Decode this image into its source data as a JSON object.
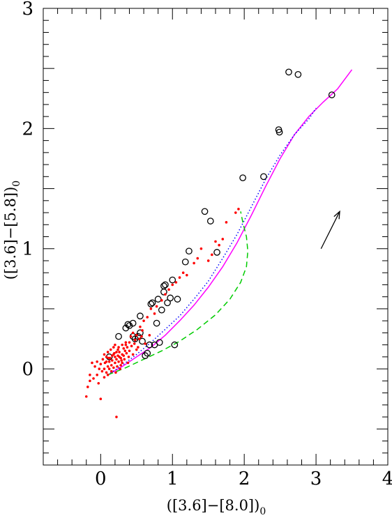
{
  "chart_data": {
    "type": "scatter",
    "xlabel": "([3.6]−[8.0])",
    "xlabel_sub": "0",
    "ylabel": "([3.6]−[5.8])",
    "ylabel_sub": "0",
    "xlim": [
      -0.8,
      4.0
    ],
    "ylim": [
      -0.8,
      3.0
    ],
    "xticks": [
      0,
      1,
      2,
      3,
      4
    ],
    "yticks": [
      0,
      1,
      2,
      3
    ],
    "xtick_labels": [
      "0",
      "1",
      "2",
      "3",
      "4"
    ],
    "ytick_labels": [
      "0",
      "1",
      "2",
      "3"
    ],
    "grid": false,
    "colors": {
      "open_circles": "#000000",
      "red_points": "#ff0000",
      "magenta_line": "#ff00ff",
      "blue_dotted": "#0000ff",
      "green_dashed": "#00cc00",
      "arrow": "#000000"
    },
    "series": [
      {
        "marker": "open-circle",
        "color": "#000000",
        "points": [
          [
            0.12,
            0.1
          ],
          [
            0.25,
            0.27
          ],
          [
            0.35,
            0.34
          ],
          [
            0.38,
            0.37
          ],
          [
            0.4,
            0.36
          ],
          [
            0.45,
            0.38
          ],
          [
            0.45,
            0.27
          ],
          [
            0.48,
            0.25
          ],
          [
            0.52,
            0.27
          ],
          [
            0.55,
            0.3
          ],
          [
            0.55,
            0.44
          ],
          [
            0.58,
            0.23
          ],
          [
            0.62,
            0.11
          ],
          [
            0.65,
            0.13
          ],
          [
            0.68,
            0.2
          ],
          [
            0.7,
            0.54
          ],
          [
            0.72,
            0.55
          ],
          [
            0.75,
            0.2
          ],
          [
            0.78,
            0.38
          ],
          [
            0.8,
            0.58
          ],
          [
            0.82,
            0.22
          ],
          [
            0.85,
            0.49
          ],
          [
            0.88,
            0.64
          ],
          [
            0.88,
            0.69
          ],
          [
            0.9,
            0.7
          ],
          [
            0.93,
            0.55
          ],
          [
            0.97,
            0.59
          ],
          [
            1.0,
            0.74
          ],
          [
            1.03,
            0.2
          ],
          [
            1.07,
            0.58
          ],
          [
            1.18,
            0.89
          ],
          [
            1.23,
            0.98
          ],
          [
            1.45,
            1.31
          ],
          [
            1.53,
            1.23
          ],
          [
            1.62,
            0.97
          ],
          [
            1.98,
            1.59
          ],
          [
            2.27,
            1.6
          ],
          [
            2.48,
            1.99
          ],
          [
            2.49,
            1.97
          ],
          [
            2.62,
            2.47
          ],
          [
            2.75,
            2.45
          ],
          [
            3.22,
            2.28
          ]
        ]
      },
      {
        "marker": "dot",
        "color": "#ff0000",
        "points": [
          [
            -0.2,
            -0.23
          ],
          [
            -0.18,
            -0.15
          ],
          [
            -0.15,
            -0.1
          ],
          [
            -0.12,
            0.05
          ],
          [
            -0.1,
            -0.08
          ],
          [
            -0.08,
            0.02
          ],
          [
            -0.05,
            -0.05
          ],
          [
            -0.05,
            0.06
          ],
          [
            -0.03,
            -0.12
          ],
          [
            -0.02,
            0.0
          ],
          [
            0.0,
            -0.25
          ],
          [
            0.0,
            0.04
          ],
          [
            0.02,
            -0.02
          ],
          [
            0.03,
            0.08
          ],
          [
            0.05,
            0.0
          ],
          [
            0.05,
            -0.07
          ],
          [
            0.06,
            0.05
          ],
          [
            0.08,
            -0.03
          ],
          [
            0.08,
            0.1
          ],
          [
            0.1,
            0.02
          ],
          [
            0.1,
            -0.05
          ],
          [
            0.12,
            0.06
          ],
          [
            0.12,
            0.0
          ],
          [
            0.13,
            0.09
          ],
          [
            0.15,
            0.03
          ],
          [
            0.15,
            -0.02
          ],
          [
            0.16,
            0.07
          ],
          [
            0.18,
            0.12
          ],
          [
            0.18,
            0.01
          ],
          [
            0.2,
            0.05
          ],
          [
            0.2,
            0.1
          ],
          [
            0.21,
            -0.03
          ],
          [
            0.22,
            0.08
          ],
          [
            0.23,
            0.02
          ],
          [
            0.24,
            0.11
          ],
          [
            0.25,
            0.06
          ],
          [
            0.26,
            0.14
          ],
          [
            0.28,
            0.03
          ],
          [
            0.28,
            0.09
          ],
          [
            0.3,
            0.12
          ],
          [
            0.3,
            0.05
          ],
          [
            0.32,
            0.17
          ],
          [
            0.33,
            0.08
          ],
          [
            0.35,
            0.2
          ],
          [
            0.36,
            0.13
          ],
          [
            0.38,
            0.05
          ],
          [
            0.4,
            0.22
          ],
          [
            0.4,
            0.15
          ],
          [
            0.42,
            0.27
          ],
          [
            0.45,
            0.3
          ],
          [
            0.45,
            0.12
          ],
          [
            0.48,
            0.24
          ],
          [
            0.5,
            0.28
          ],
          [
            0.52,
            0.18
          ],
          [
            0.55,
            0.35
          ],
          [
            0.58,
            0.32
          ],
          [
            0.6,
            0.4
          ],
          [
            0.62,
            0.21
          ],
          [
            0.65,
            0.43
          ],
          [
            0.68,
            0.28
          ],
          [
            0.7,
            0.5
          ],
          [
            0.75,
            0.46
          ],
          [
            0.78,
            0.52
          ],
          [
            0.85,
            0.57
          ],
          [
            0.9,
            0.62
          ],
          [
            0.95,
            0.66
          ],
          [
            1.0,
            0.7
          ],
          [
            1.05,
            0.72
          ],
          [
            1.1,
            0.76
          ],
          [
            1.15,
            0.8
          ],
          [
            1.2,
            0.78
          ],
          [
            1.3,
            0.88
          ],
          [
            1.35,
            0.92
          ],
          [
            1.4,
            1.0
          ],
          [
            1.5,
            0.9
          ],
          [
            1.55,
            0.95
          ],
          [
            1.6,
            1.06
          ],
          [
            1.65,
            1.03
          ],
          [
            1.7,
            1.08
          ],
          [
            1.75,
            1.22
          ],
          [
            1.88,
            1.3
          ],
          [
            1.92,
            1.33
          ],
          [
            -0.15,
            -0.05
          ],
          [
            0.22,
            -0.4
          ],
          [
            0.25,
            0.18
          ],
          [
            0.27,
            0.0
          ],
          [
            0.3,
            0.2
          ],
          [
            0.35,
            0.22
          ],
          [
            0.05,
            0.12
          ],
          [
            0.1,
            0.14
          ],
          [
            0.14,
            0.16
          ],
          [
            0.18,
            0.18
          ],
          [
            0.2,
            0.2
          ],
          [
            0.24,
            0.16
          ],
          [
            0.08,
            0.06
          ],
          [
            0.11,
            0.09
          ],
          [
            0.16,
            0.11
          ],
          [
            0.19,
            0.13
          ],
          [
            0.22,
            0.14
          ],
          [
            0.26,
            0.1
          ],
          [
            0.29,
            0.07
          ],
          [
            0.32,
            0.11
          ],
          [
            0.34,
            0.15
          ],
          [
            0.37,
            0.18
          ],
          [
            0.39,
            0.1
          ],
          [
            0.43,
            0.19
          ],
          [
            0.47,
            0.21
          ],
          [
            0.5,
            0.16
          ],
          [
            0.54,
            0.25
          ],
          [
            0.57,
            0.27
          ]
        ]
      },
      {
        "style": "solid",
        "color": "#ff00ff",
        "points": [
          [
            0.1,
            -0.05
          ],
          [
            0.3,
            0.02
          ],
          [
            0.5,
            0.1
          ],
          [
            0.7,
            0.18
          ],
          [
            0.9,
            0.28
          ],
          [
            1.1,
            0.4
          ],
          [
            1.3,
            0.53
          ],
          [
            1.5,
            0.68
          ],
          [
            1.7,
            0.85
          ],
          [
            1.9,
            1.05
          ],
          [
            2.1,
            1.28
          ],
          [
            2.3,
            1.52
          ],
          [
            2.5,
            1.75
          ],
          [
            2.7,
            1.95
          ],
          [
            2.9,
            2.1
          ],
          [
            3.1,
            2.22
          ],
          [
            3.3,
            2.33
          ],
          [
            3.5,
            2.49
          ]
        ]
      },
      {
        "style": "dotted",
        "color": "#0000ff",
        "points": [
          [
            0.1,
            -0.05
          ],
          [
            0.3,
            0.03
          ],
          [
            0.5,
            0.12
          ],
          [
            0.7,
            0.22
          ],
          [
            0.9,
            0.33
          ],
          [
            1.1,
            0.44
          ],
          [
            1.3,
            0.58
          ],
          [
            1.5,
            0.73
          ],
          [
            1.7,
            0.92
          ],
          [
            1.9,
            1.12
          ],
          [
            2.1,
            1.35
          ],
          [
            2.3,
            1.58
          ],
          [
            2.5,
            1.78
          ],
          [
            2.7,
            1.95
          ],
          [
            2.9,
            2.08
          ],
          [
            3.0,
            2.17
          ]
        ]
      },
      {
        "style": "dashed",
        "color": "#00cc00",
        "points": [
          [
            0.1,
            -0.05
          ],
          [
            0.35,
            0.01
          ],
          [
            0.6,
            0.08
          ],
          [
            0.85,
            0.15
          ],
          [
            1.1,
            0.23
          ],
          [
            1.35,
            0.33
          ],
          [
            1.6,
            0.45
          ],
          [
            1.8,
            0.58
          ],
          [
            1.95,
            0.72
          ],
          [
            2.03,
            0.85
          ],
          [
            2.05,
            0.98
          ],
          [
            2.03,
            1.1
          ],
          [
            1.98,
            1.22
          ],
          [
            1.95,
            1.31
          ]
        ]
      }
    ],
    "arrow": {
      "from": [
        3.07,
        1.0
      ],
      "to": [
        3.33,
        1.31
      ]
    }
  }
}
